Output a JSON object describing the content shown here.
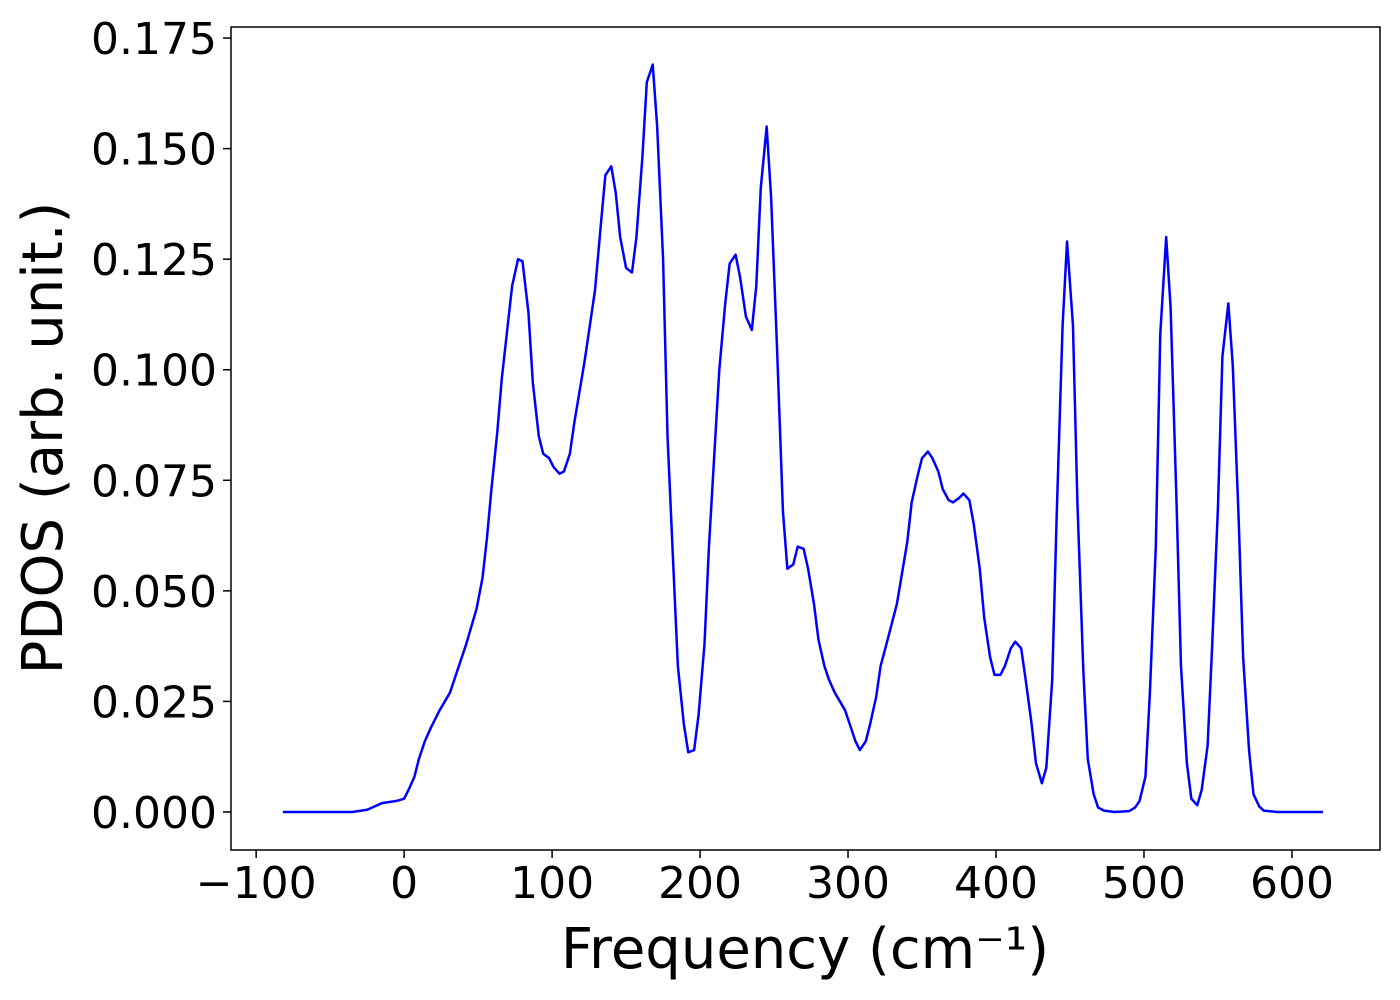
{
  "chart_data": {
    "type": "line",
    "x_label": "Frequency (cm⁻¹)",
    "y_label": "PDOS (arb. unit.)",
    "x": [
      -82,
      -60,
      -35,
      -25,
      -15,
      -5,
      0,
      3,
      7,
      10,
      14,
      18,
      24,
      31,
      35,
      42,
      49,
      53,
      56,
      59,
      63,
      66,
      70,
      73,
      77,
      80,
      84,
      87,
      91,
      94,
      98,
      101,
      105,
      108,
      112,
      115,
      122,
      129,
      133,
      136,
      140,
      143,
      146,
      150,
      154,
      157,
      161,
      164,
      168,
      171,
      175,
      178,
      182,
      185,
      189,
      192,
      196,
      199,
      203,
      206,
      210,
      213,
      217,
      220,
      224,
      227,
      231,
      235,
      238,
      241,
      245,
      248,
      252,
      256,
      259,
      263,
      266,
      270,
      273,
      277,
      280,
      284,
      287,
      291,
      298,
      301,
      305,
      308,
      312,
      315,
      319,
      322,
      326,
      333,
      336,
      340,
      343,
      347,
      350,
      354,
      357,
      361,
      364,
      368,
      371,
      375,
      378,
      382,
      385,
      389,
      392,
      396,
      399,
      403,
      406,
      410,
      413,
      417,
      420,
      424,
      427,
      431,
      434,
      438,
      441,
      445,
      448,
      452,
      455,
      459,
      462,
      466,
      469,
      473,
      480,
      490,
      494,
      497,
      501,
      504,
      508,
      511,
      515,
      518,
      522,
      525,
      529,
      532,
      536,
      539,
      543,
      546,
      550,
      553,
      557,
      560,
      564,
      567,
      571,
      574,
      578,
      581,
      590,
      621
    ],
    "values": [
      0,
      0,
      0,
      0.0005,
      0.002,
      0.0025,
      0.003,
      0.005,
      0.008,
      0.012,
      0.016,
      0.019,
      0.023,
      0.027,
      0.031,
      0.038,
      0.046,
      0.053,
      0.062,
      0.073,
      0.086,
      0.098,
      0.11,
      0.119,
      0.125,
      0.1245,
      0.113,
      0.097,
      0.085,
      0.081,
      0.08,
      0.078,
      0.0765,
      0.077,
      0.081,
      0.088,
      0.102,
      0.118,
      0.133,
      0.144,
      0.146,
      0.14,
      0.13,
      0.123,
      0.122,
      0.13,
      0.148,
      0.165,
      0.169,
      0.155,
      0.125,
      0.085,
      0.055,
      0.033,
      0.02,
      0.0135,
      0.014,
      0.022,
      0.038,
      0.06,
      0.083,
      0.1,
      0.115,
      0.124,
      0.126,
      0.121,
      0.112,
      0.109,
      0.119,
      0.141,
      0.155,
      0.139,
      0.105,
      0.068,
      0.055,
      0.056,
      0.06,
      0.0595,
      0.055,
      0.047,
      0.039,
      0.033,
      0.03,
      0.027,
      0.023,
      0.02,
      0.016,
      0.014,
      0.016,
      0.02,
      0.026,
      0.033,
      0.038,
      0.047,
      0.053,
      0.061,
      0.07,
      0.076,
      0.08,
      0.0815,
      0.08,
      0.077,
      0.073,
      0.0705,
      0.07,
      0.071,
      0.072,
      0.0705,
      0.065,
      0.055,
      0.044,
      0.035,
      0.031,
      0.031,
      0.033,
      0.037,
      0.0385,
      0.037,
      0.03,
      0.02,
      0.011,
      0.0065,
      0.01,
      0.03,
      0.067,
      0.11,
      0.129,
      0.11,
      0.07,
      0.032,
      0.012,
      0.004,
      0.001,
      0.0003,
      0,
      0.0002,
      0.001,
      0.0025,
      0.008,
      0.027,
      0.06,
      0.108,
      0.13,
      0.114,
      0.07,
      0.033,
      0.011,
      0.003,
      0.0015,
      0.005,
      0.015,
      0.037,
      0.069,
      0.103,
      0.115,
      0.101,
      0.066,
      0.035,
      0.014,
      0.004,
      0.0012,
      0.0003,
      0,
      0
    ],
    "color": "#0000ff",
    "xlim": [
      -117,
      659.5
    ],
    "ylim": [
      -0.0086,
      0.1775
    ],
    "xticks": [
      {
        "value": -100,
        "label": "−100"
      },
      0,
      100,
      200,
      300,
      400,
      500,
      600
    ],
    "yticks": [
      {
        "value": 0,
        "label": "0.000"
      },
      0.025,
      {
        "value": 0.05,
        "label": "0.050"
      },
      0.075,
      {
        "value": 0.1,
        "label": "0.100"
      },
      0.125,
      {
        "value": 0.15,
        "label": "0.150"
      },
      0.175
    ],
    "grid": false
  }
}
